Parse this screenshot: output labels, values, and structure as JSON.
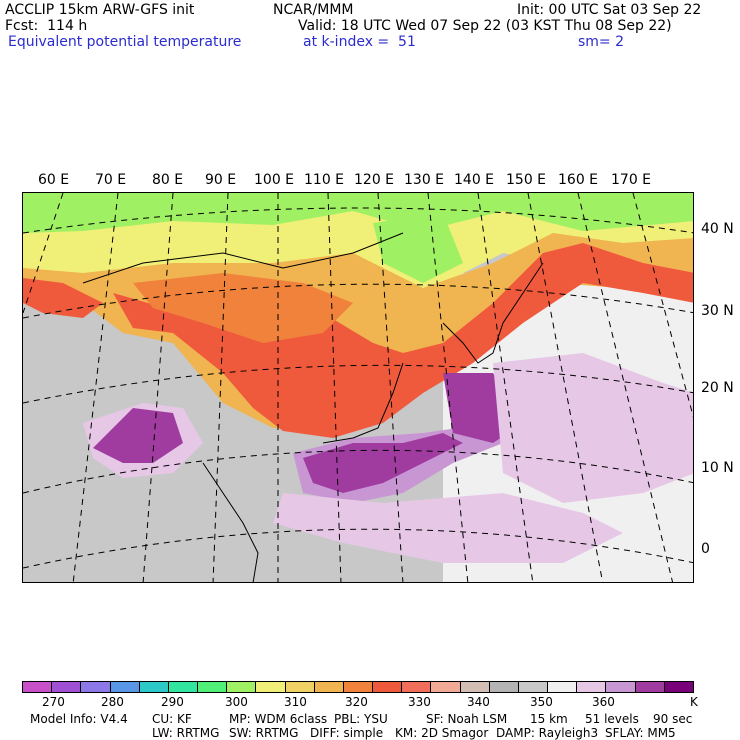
{
  "header": {
    "model": "ACCLIP 15km ARW-GFS init",
    "center": "NCAR/MMM",
    "init": "Init: 00 UTC Sat 03 Sep 22",
    "fcst": "Fcst:  114 h",
    "valid": "Valid: 18 UTC Wed 07 Sep 22 (03 KST Thu 08 Sep 22)",
    "field": "Equivalent potential temperature",
    "level": "at k-index =  51",
    "smooth": "sm= 2"
  },
  "map": {
    "lon_labels": [
      "60 E",
      "70 E",
      "80 E",
      "90 E",
      "100 E",
      "110 E",
      "120 E",
      "130 E",
      "140 E",
      "150 E",
      "160 E",
      "170 E"
    ],
    "lat_labels": [
      "40 N",
      "30 N",
      "20 N",
      "10 N",
      "0"
    ]
  },
  "colorbar": {
    "colors": [
      "#c850c8",
      "#a050d2",
      "#8c78e6",
      "#5a96e6",
      "#2dc8c8",
      "#32e6a0",
      "#50f078",
      "#a0f064",
      "#f0f078",
      "#f0d264",
      "#f0b450",
      "#f0823c",
      "#f05a3c",
      "#f06e5a",
      "#f0aa96",
      "#d2beb4",
      "#b4b4b4",
      "#c8c8c8",
      "#f0f0f0",
      "#e6c8e6",
      "#c896d2",
      "#a03ca0",
      "#780078"
    ],
    "labels": [
      "270",
      "280",
      "290",
      "300",
      "310",
      "320",
      "330",
      "340",
      "350",
      "360"
    ],
    "unit": "K"
  },
  "footer": {
    "line1": [
      "Model Info: V4.4",
      "CU: KF",
      "MP: WDM 6class",
      "PBL: YSU",
      "SF: Noah LSM",
      "15 km",
      "51 levels",
      "90 sec"
    ],
    "line2": [
      "LW: RRTMG",
      "SW: RRTMG",
      "DIFF: simple",
      "KM: 2D Smagor",
      "DAMP: Rayleigh3",
      "SFLAY: MM5"
    ]
  }
}
